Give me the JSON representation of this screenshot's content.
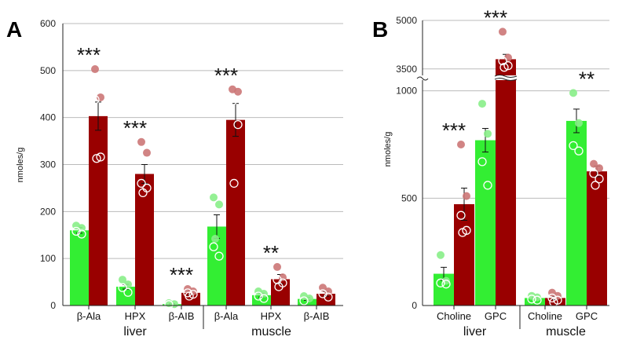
{
  "colors": {
    "green": "#33ee33",
    "red": "#990000",
    "green_point": "#88ee88",
    "red_point": "#cc7777",
    "grid": "#bbbbbb"
  },
  "chart_data": [
    {
      "panel": "A",
      "type": "bar",
      "ylabel": "nmoles/g",
      "ylim": [
        0,
        600
      ],
      "yticks": [
        0,
        100,
        200,
        300,
        400,
        500,
        600
      ],
      "grid": true,
      "groups": [
        {
          "label": "liver",
          "categories": [
            {
              "label": "β-Ala",
              "green": 160,
              "green_err": 6,
              "red": 403,
              "red_err": 30,
              "sig": "***",
              "green_points": [
                170,
                165,
                158,
                152
              ],
              "red_points": [
                503,
                443,
                438,
                316,
                313
              ]
            },
            {
              "label": "HPX",
              "green": 40,
              "green_err": 5,
              "red": 280,
              "red_err": 20,
              "sig": "***",
              "green_points": [
                55,
                45,
                38,
                28
              ],
              "red_points": [
                348,
                325,
                260,
                250,
                240
              ]
            },
            {
              "label": "β-AIB",
              "green": 3,
              "green_err": 1,
              "red": 27,
              "red_err": 4,
              "sig": "***",
              "green_points": [
                5,
                3,
                2
              ],
              "red_points": [
                35,
                30,
                27,
                24,
                20
              ]
            }
          ]
        },
        {
          "label": "muscle",
          "categories": [
            {
              "label": "β-Ala",
              "green": 168,
              "green_err": 25,
              "red": 395,
              "red_err": 35,
              "sig": "***",
              "green_points": [
                230,
                215,
                142,
                125,
                105
              ],
              "red_points": [
                460,
                455,
                435,
                385,
                260
              ]
            },
            {
              "label": "HPX",
              "green": 22,
              "green_err": 4,
              "red": 56,
              "red_err": 10,
              "sig": "**",
              "green_points": [
                30,
                25,
                20,
                15
              ],
              "red_points": [
                82,
                60,
                55,
                48,
                40
              ]
            },
            {
              "label": "β-AIB",
              "green": 14,
              "green_err": 3,
              "red": 25,
              "red_err": 5,
              "sig": "",
              "green_points": [
                20,
                15,
                10
              ],
              "red_points": [
                38,
                30,
                25,
                18
              ]
            }
          ]
        }
      ]
    },
    {
      "panel": "B",
      "type": "bar",
      "ylabel": "nmoles/g",
      "broken_axis": true,
      "ylim_lower": [
        0,
        1050
      ],
      "ylim_upper": [
        3300,
        5000
      ],
      "yticks_lower": [
        0,
        500,
        1000
      ],
      "yticks_upper": [
        3500,
        5000
      ],
      "grid": true,
      "groups": [
        {
          "label": "liver",
          "categories": [
            {
              "label": "Choline",
              "green": 148,
              "green_err": 30,
              "red": 472,
              "red_err": 75,
              "sig": "***",
              "green_points": [
                235,
                115,
                105,
                100
              ],
              "red_points": [
                750,
                510,
                420,
                350,
                340
              ]
            },
            {
              "label": "GPC",
              "green": 770,
              "green_err": 55,
              "red": 3800,
              "red_err": 150,
              "sig": "***",
              "green_points": [
                940,
                800,
                670,
                560
              ],
              "red_points": [
                4650,
                3850,
                3750,
                3600,
                3550
              ]
            }
          ]
        },
        {
          "label": "muscle",
          "categories": [
            {
              "label": "Choline",
              "green": 35,
              "green_err": 4,
              "red": 35,
              "red_err": 8,
              "sig": "",
              "green_points": [
                45,
                38,
                30,
                25
              ],
              "red_points": [
                60,
                45,
                35,
                25,
                15
              ]
            },
            {
              "label": "GPC",
              "green": 860,
              "green_err": 55,
              "red": 625,
              "red_err": 25,
              "sig": "**",
              "green_points": [
                990,
                850,
                745,
                720
              ],
              "red_points": [
                660,
                640,
                615,
                590,
                560
              ]
            }
          ]
        }
      ]
    }
  ]
}
